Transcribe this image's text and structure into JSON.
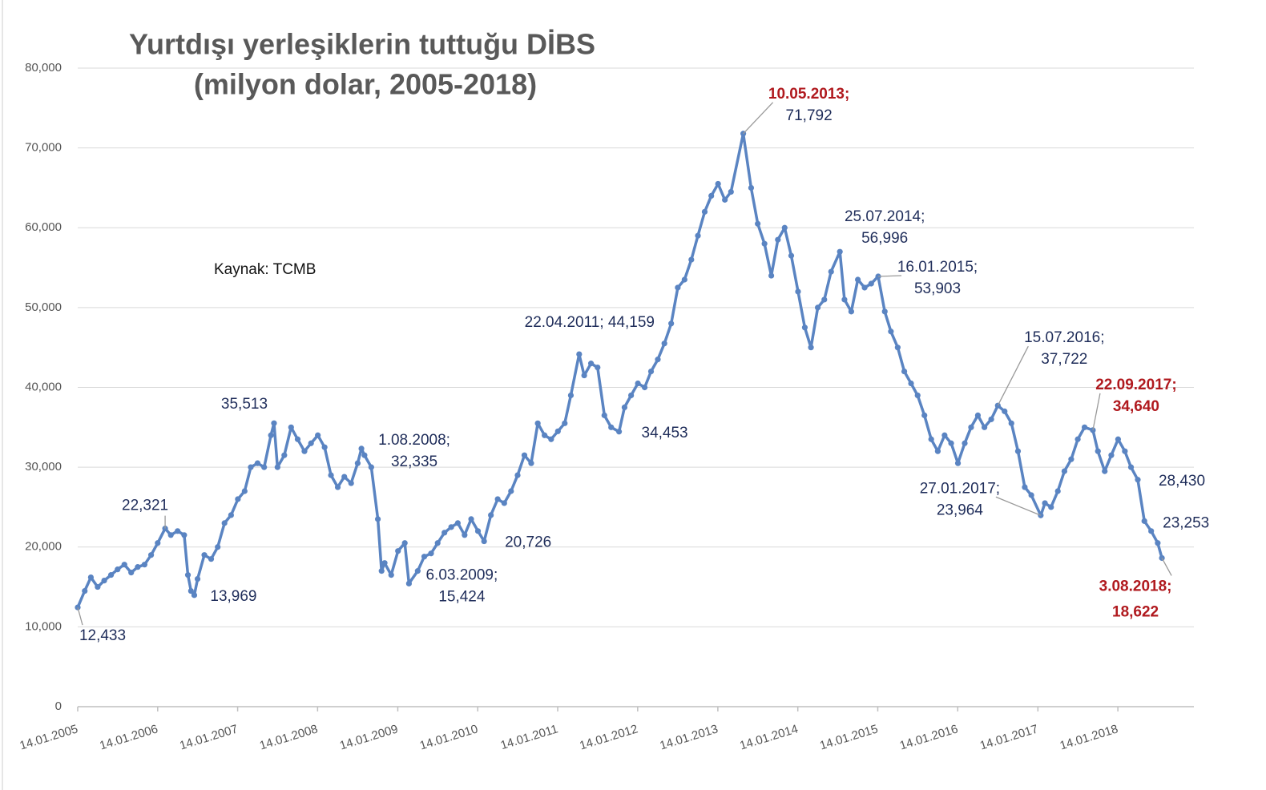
{
  "chart_data": {
    "type": "line",
    "title": [
      "Yurtdışı yerleşiklerin tuttuğu DİBS",
      "(milyon dolar, 2005-2018)"
    ],
    "source": "Kaynak: TCMB",
    "color": "#5a84c2",
    "grid": true,
    "xlim": [
      "14.01.2005",
      "27.12.2018"
    ],
    "xticks": [
      "14.01.2005",
      "14.01.2006",
      "14.01.2007",
      "14.01.2008",
      "14.01.2009",
      "14.01.2010",
      "14.01.2011",
      "14.01.2012",
      "14.01.2013",
      "14.01.2014",
      "14.01.2015",
      "14.01.2016",
      "14.01.2017",
      "14.01.2018"
    ],
    "ylim": [
      0,
      80000
    ],
    "yticks": [
      0,
      {
        "value": 10000,
        "label": "10,000"
      },
      {
        "value": 20000,
        "label": "20,000"
      },
      {
        "value": 30000,
        "label": "30,000"
      },
      {
        "value": 40000,
        "label": "40,000"
      },
      {
        "value": 50000,
        "label": "50,000"
      },
      {
        "value": 60000,
        "label": "60,000"
      },
      {
        "value": 70000,
        "label": "70,000"
      },
      {
        "value": 80000,
        "label": "80,000"
      }
    ],
    "x": [
      "14.01.2005",
      "15.02.2005",
      "15.03.2005",
      "15.04.2005",
      "15.05.2005",
      "15.06.2005",
      "15.07.2005",
      "15.08.2005",
      "15.09.2005",
      "15.10.2005",
      "15.11.2005",
      "15.12.2005",
      "14.01.2006",
      "17.02.2006",
      "15.03.2006",
      "15.04.2006",
      "15.05.2006",
      "01.06.2006",
      "15.06.2006",
      "30.06.2006",
      "15.07.2006",
      "15.08.2006",
      "15.09.2006",
      "15.10.2006",
      "15.11.2006",
      "15.12.2006",
      "15.01.2007",
      "15.02.2007",
      "15.03.2007",
      "15.04.2007",
      "15.05.2007",
      "15.06.2007",
      "29.06.2007",
      "15.07.2007",
      "15.08.2007",
      "15.09.2007",
      "15.10.2007",
      "15.11.2007",
      "15.12.2007",
      "15.01.2008",
      "15.02.2008",
      "15.03.2008",
      "15.04.2008",
      "15.05.2008",
      "15.06.2008",
      "15.07.2008",
      "01.08.2008",
      "15.08.2008",
      "15.09.2008",
      "15.10.2008",
      "01.11.2008",
      "15.11.2008",
      "15.12.2008",
      "15.01.2009",
      "15.02.2009",
      "06.03.2009",
      "15.04.2009",
      "15.05.2009",
      "15.06.2009",
      "15.07.2009",
      "15.08.2009",
      "15.09.2009",
      "15.10.2009",
      "15.11.2009",
      "15.12.2009",
      "15.01.2010",
      "12.02.2010",
      "15.03.2010",
      "15.04.2010",
      "15.05.2010",
      "15.06.2010",
      "15.07.2010",
      "15.08.2010",
      "15.09.2010",
      "15.10.2010",
      "15.11.2010",
      "15.12.2010",
      "15.01.2011",
      "15.02.2011",
      "15.03.2011",
      "22.04.2011",
      "15.05.2011",
      "15.06.2011",
      "15.07.2011",
      "15.08.2011",
      "15.09.2011",
      "21.10.2011",
      "15.11.2011",
      "15.12.2011",
      "15.01.2012",
      "15.02.2012",
      "15.03.2012",
      "15.04.2012",
      "15.05.2012",
      "15.06.2012",
      "15.07.2012",
      "15.08.2012",
      "15.09.2012",
      "15.10.2012",
      "15.11.2012",
      "15.12.2012",
      "15.01.2013",
      "15.02.2013",
      "15.03.2013",
      "10.05.2013",
      "15.06.2013",
      "15.07.2013",
      "15.08.2013",
      "15.09.2013",
      "15.10.2013",
      "15.11.2013",
      "15.12.2013",
      "15.01.2014",
      "15.02.2014",
      "15.03.2014",
      "15.04.2014",
      "15.05.2014",
      "15.06.2014",
      "25.07.2014",
      "15.08.2014",
      "15.09.2014",
      "15.10.2014",
      "15.11.2014",
      "15.12.2014",
      "16.01.2015",
      "15.02.2015",
      "15.03.2015",
      "15.04.2015",
      "15.05.2015",
      "15.06.2015",
      "15.07.2015",
      "15.08.2015",
      "15.09.2015",
      "15.10.2015",
      "15.11.2015",
      "15.12.2015",
      "15.01.2016",
      "15.02.2016",
      "15.03.2016",
      "15.04.2016",
      "15.05.2016",
      "15.06.2016",
      "15.07.2016",
      "15.08.2016",
      "15.09.2016",
      "15.10.2016",
      "15.11.2016",
      "15.12.2016",
      "27.01.2017",
      "15.02.2017",
      "15.03.2017",
      "15.04.2017",
      "15.05.2017",
      "15.06.2017",
      "15.07.2017",
      "15.08.2017",
      "22.09.2017",
      "15.10.2017",
      "15.11.2017",
      "15.12.2017",
      "15.01.2018",
      "15.02.2018",
      "15.03.2018",
      "15.04.2018",
      "15.05.2018",
      "15.06.2018",
      "15.07.2018",
      "03.08.2018"
    ],
    "values": [
      12433,
      14500,
      16200,
      15000,
      15800,
      16500,
      17200,
      17800,
      16800,
      17500,
      17800,
      19000,
      20500,
      22321,
      21500,
      22000,
      21500,
      16500,
      14500,
      13969,
      16000,
      19000,
      18500,
      20000,
      23000,
      24000,
      26000,
      27000,
      30000,
      30500,
      30000,
      34000,
      35513,
      30000,
      31500,
      35000,
      33500,
      32000,
      33000,
      34000,
      32500,
      29000,
      27500,
      28800,
      28000,
      30500,
      32335,
      31500,
      30000,
      23500,
      17000,
      18000,
      16500,
      19500,
      20500,
      15424,
      17000,
      18800,
      19200,
      20500,
      21800,
      22500,
      23000,
      21500,
      23500,
      22000,
      20726,
      24000,
      26000,
      25500,
      27000,
      29000,
      31500,
      30500,
      35500,
      34000,
      33500,
      34500,
      35500,
      39000,
      44159,
      41500,
      43000,
      42500,
      36500,
      35000,
      34453,
      37500,
      39000,
      40500,
      40000,
      42000,
      43500,
      45500,
      48000,
      52500,
      53500,
      56000,
      59000,
      62000,
      64000,
      65500,
      63500,
      64500,
      71792,
      65000,
      60500,
      58000,
      54000,
      58500,
      60000,
      56500,
      52000,
      47500,
      45000,
      50000,
      51000,
      54500,
      56996,
      51000,
      49500,
      53500,
      52500,
      53000,
      53903,
      49500,
      47000,
      45000,
      42000,
      40500,
      39000,
      36500,
      33500,
      32000,
      34000,
      33000,
      30500,
      33000,
      35000,
      36500,
      35000,
      36000,
      37722,
      37000,
      35500,
      32000,
      27500,
      26500,
      23964,
      25500,
      25000,
      27000,
      29500,
      31000,
      33500,
      35000,
      34640,
      32000,
      29500,
      31500,
      33500,
      32000,
      30000,
      28430,
      23253,
      22000,
      20500,
      18622
    ],
    "annotations": [
      {
        "lines": [
          "12,433"
        ],
        "x": "14.01.2005",
        "y": 12433,
        "color": "#1f2d5a"
      },
      {
        "lines": [
          "22,321"
        ],
        "x": "17.02.2006",
        "y": 22321,
        "color": "#1f2d5a"
      },
      {
        "lines": [
          "13,969"
        ],
        "x": "30.06.2006",
        "y": 13969,
        "color": "#1f2d5a"
      },
      {
        "lines": [
          "35,513"
        ],
        "x": "29.06.2007",
        "y": 35513,
        "color": "#1f2d5a"
      },
      {
        "lines": [
          "1.08.2008;",
          "32,335"
        ],
        "x": "01.08.2008",
        "y": 32335,
        "color": "#1f2d5a"
      },
      {
        "lines": [
          "6.03.2009;",
          "15,424"
        ],
        "x": "06.03.2009",
        "y": 15424,
        "color": "#1f2d5a"
      },
      {
        "lines": [
          "20,726"
        ],
        "x": "12.02.2010",
        "y": 20726,
        "color": "#1f2d5a"
      },
      {
        "lines": [
          "22.04.2011; 44,159"
        ],
        "x": "22.04.2011",
        "y": 44159,
        "color": "#1f2d5a"
      },
      {
        "lines": [
          "34,453"
        ],
        "x": "21.10.2011",
        "y": 34453,
        "color": "#1f2d5a"
      },
      {
        "lines": [
          "10.05.2013;",
          "71,792"
        ],
        "x": "10.05.2013",
        "y": 71792,
        "color": [
          "#b0191e",
          "#1f2d5a"
        ]
      },
      {
        "lines": [
          "25.07.2014;",
          "56,996"
        ],
        "x": "25.07.2014",
        "y": 56996,
        "color": "#1f2d5a"
      },
      {
        "lines": [
          "16.01.2015;",
          "53,903"
        ],
        "x": "16.01.2015",
        "y": 53903,
        "color": "#1f2d5a"
      },
      {
        "lines": [
          "27.01.2017;",
          "23,964"
        ],
        "x": "27.01.2017",
        "y": 23964,
        "color": "#1f2d5a"
      },
      {
        "lines": [
          "15.07.2016;",
          "37,722"
        ],
        "x": "15.07.2016",
        "y": 37722,
        "color": "#1f2d5a"
      },
      {
        "lines": [
          "22.09.2017;",
          "34,640"
        ],
        "x": "22.09.2017",
        "y": 34640,
        "color": "#b0191e"
      },
      {
        "lines": [
          "28,430"
        ],
        "x": "15.04.2018",
        "y": 28430,
        "color": "#1f2d5a"
      },
      {
        "lines": [
          "23,253"
        ],
        "x": "15.05.2018",
        "y": 23253,
        "color": "#1f2d5a"
      },
      {
        "lines": [
          "3.08.2018;",
          "18,622"
        ],
        "x": "03.08.2018",
        "y": 18622,
        "color": "#b0191e"
      }
    ]
  }
}
